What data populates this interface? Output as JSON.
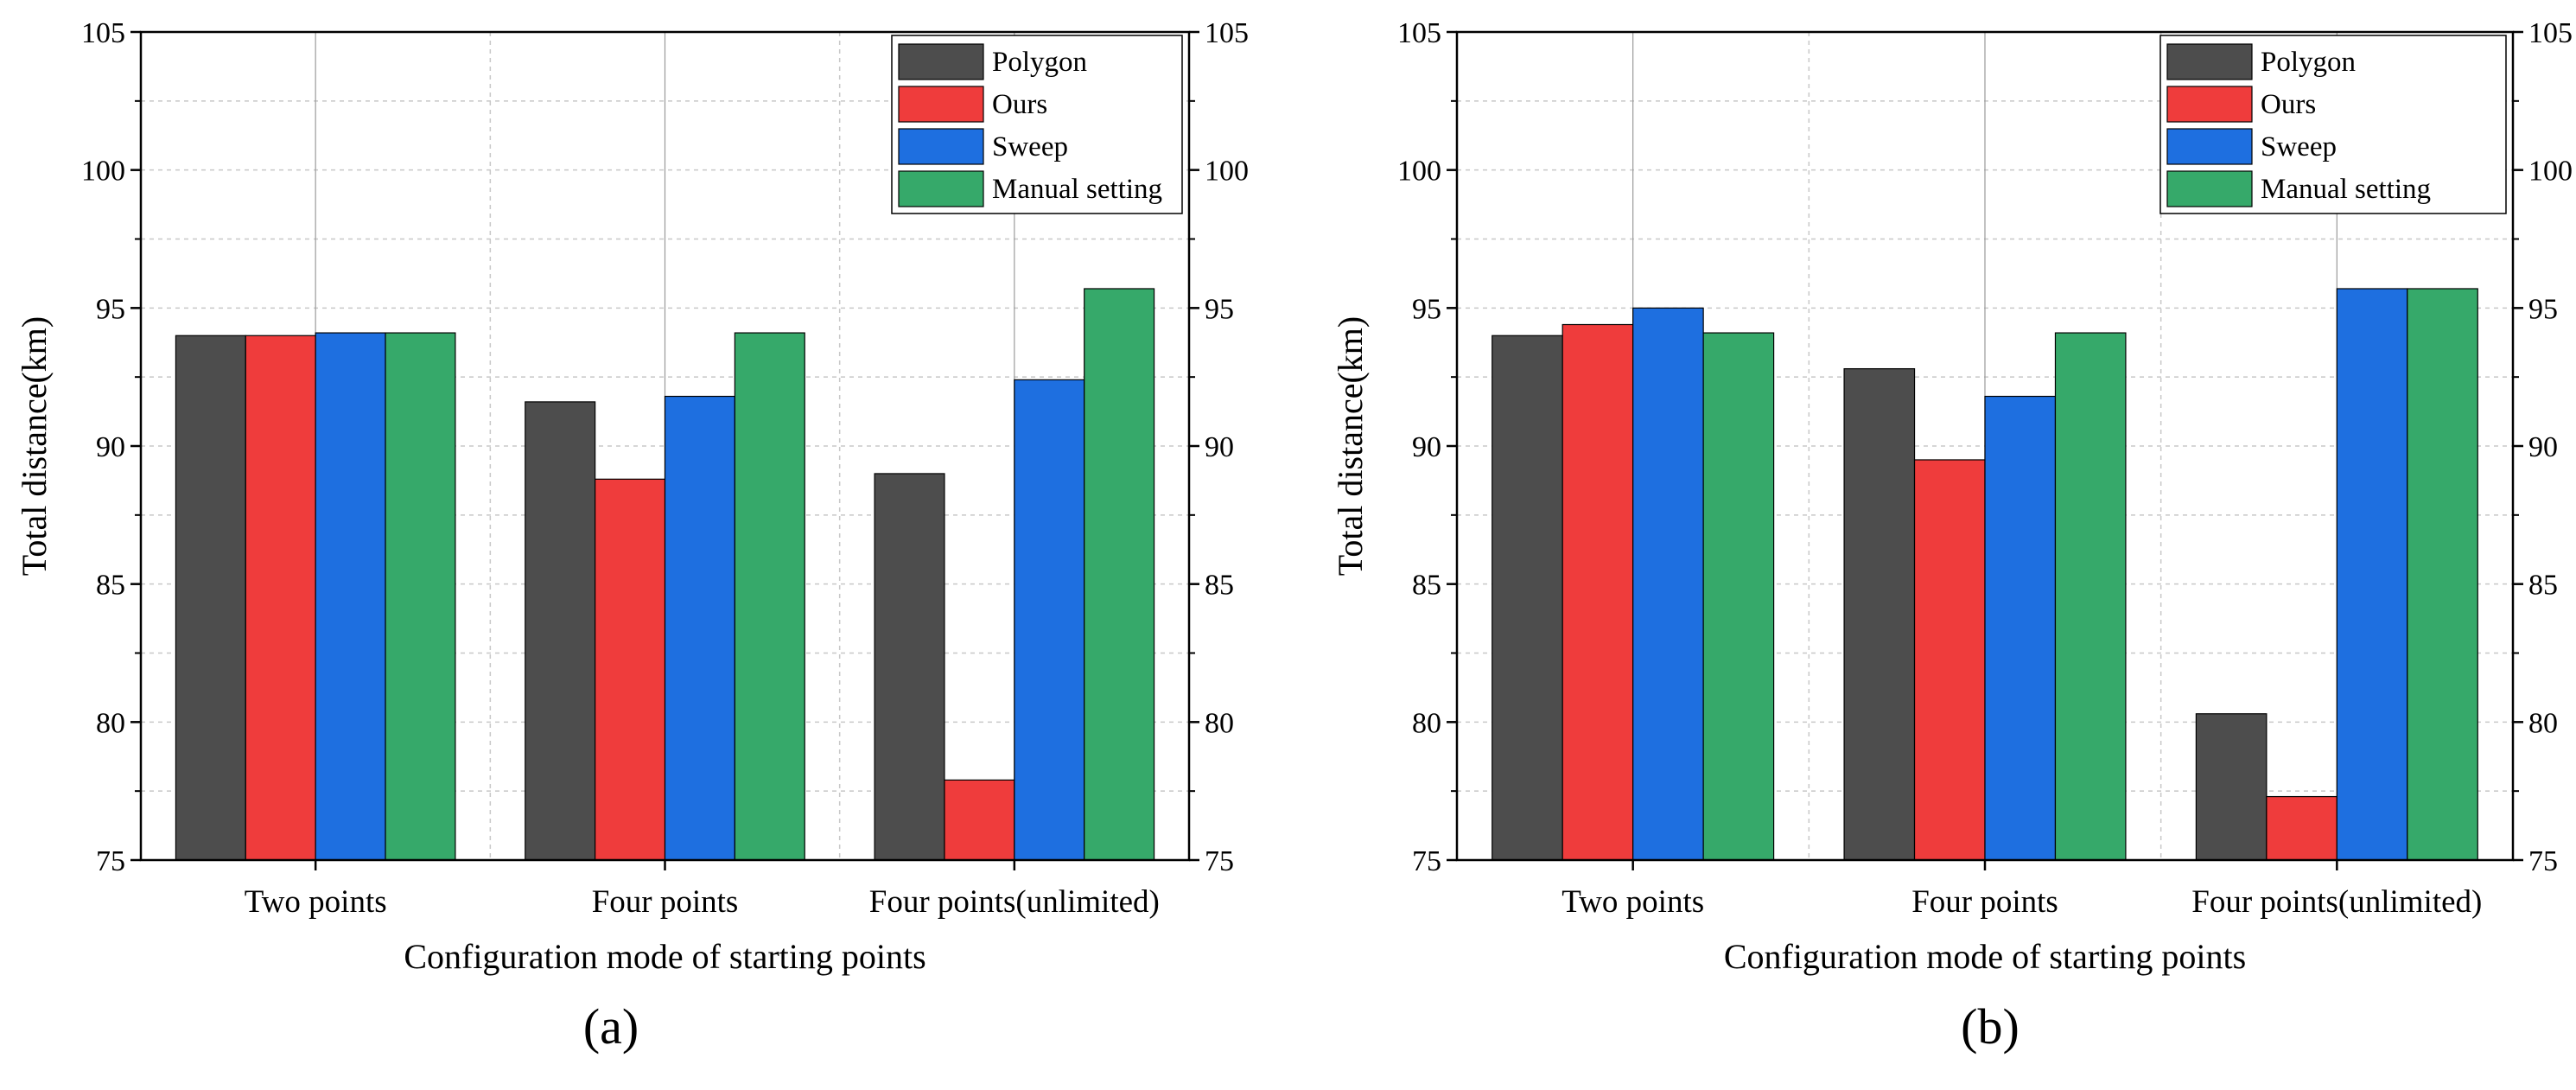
{
  "chart_data": [
    {
      "type": "bar",
      "panel_label": "(a)",
      "xlabel": "Configuration mode of starting points",
      "ylabel": "Total distance(km)",
      "ylim": [
        75,
        105
      ],
      "yticks": [
        75,
        80,
        85,
        90,
        95,
        100,
        105
      ],
      "right_axis_ticks": [
        75,
        80,
        85,
        90,
        95,
        100,
        105
      ],
      "grid": true,
      "legend_position": "top-right",
      "categories": [
        "Two points",
        "Four points",
        "Four points(unlimited)"
      ],
      "series": [
        {
          "name": "Polygon",
          "color": "#4d4d4d",
          "values": [
            94.0,
            91.6,
            89.0
          ]
        },
        {
          "name": "Ours",
          "color": "#ef3c3c",
          "values": [
            94.0,
            88.8,
            77.9
          ]
        },
        {
          "name": "Sweep",
          "color": "#1e6fe0",
          "values": [
            94.1,
            91.8,
            92.4
          ]
        },
        {
          "name": "Manual setting",
          "color": "#36a96a",
          "values": [
            94.1,
            94.1,
            95.7
          ]
        }
      ]
    },
    {
      "type": "bar",
      "panel_label": "(b)",
      "xlabel": "Configuration mode of starting points",
      "ylabel": "Total distance(km)",
      "ylim": [
        75,
        105
      ],
      "yticks": [
        75,
        80,
        85,
        90,
        95,
        100,
        105
      ],
      "right_axis_ticks": [
        75,
        80,
        85,
        90,
        95,
        100,
        105
      ],
      "grid": true,
      "legend_position": "top-right",
      "categories": [
        "Two points",
        "Four points",
        "Four points(unlimited)"
      ],
      "series": [
        {
          "name": "Polygon",
          "color": "#4d4d4d",
          "values": [
            94.0,
            92.8,
            80.3
          ]
        },
        {
          "name": "Ours",
          "color": "#ef3c3c",
          "values": [
            94.4,
            89.5,
            77.3
          ]
        },
        {
          "name": "Sweep",
          "color": "#1e6fe0",
          "values": [
            95.0,
            91.8,
            95.7
          ]
        },
        {
          "name": "Manual setting",
          "color": "#36a96a",
          "values": [
            94.1,
            94.1,
            95.7
          ]
        }
      ]
    }
  ]
}
